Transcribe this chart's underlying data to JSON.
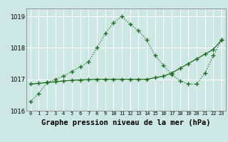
{
  "title": "Graphe pression niveau de la mer (hPa)",
  "x_labels": [
    "0",
    "1",
    "2",
    "3",
    "4",
    "5",
    "6",
    "7",
    "8",
    "9",
    "10",
    "11",
    "12",
    "13",
    "14",
    "15",
    "16",
    "17",
    "18",
    "19",
    "20",
    "21",
    "22",
    "23"
  ],
  "line1_x": [
    0,
    1,
    2,
    3,
    4,
    5,
    6,
    7,
    8,
    9,
    10,
    11,
    12,
    13,
    14,
    15,
    16,
    17,
    18,
    19,
    20,
    21,
    22,
    23
  ],
  "line1_y": [
    1016.3,
    1016.55,
    1016.9,
    1017.0,
    1017.1,
    1017.25,
    1017.4,
    1017.55,
    1018.0,
    1018.45,
    1018.8,
    1019.0,
    1018.75,
    1018.55,
    1018.25,
    1017.75,
    1017.45,
    1017.15,
    1016.95,
    1016.85,
    1016.85,
    1017.2,
    1017.75,
    1018.25
  ],
  "line2_x": [
    0,
    1,
    2,
    3,
    4,
    5,
    6,
    7,
    8,
    9,
    10,
    11,
    12,
    13,
    14,
    15,
    16,
    17,
    18,
    19,
    20,
    21,
    22,
    23
  ],
  "line2_y": [
    1016.85,
    1016.87,
    1016.9,
    1016.92,
    1016.95,
    1016.97,
    1016.98,
    1016.99,
    1017.0,
    1017.0,
    1017.0,
    1017.0,
    1017.0,
    1017.0,
    1017.0,
    1017.05,
    1017.1,
    1017.2,
    1017.35,
    1017.5,
    1017.65,
    1017.8,
    1017.95,
    1018.25
  ],
  "line_color": "#1a6b1a",
  "bg_color": "#cde8e4",
  "grid_color": "#b0d8d4",
  "ylim": [
    1016.0,
    1019.25
  ],
  "yticks": [
    1016,
    1017,
    1018,
    1019
  ],
  "title_fontsize": 7.5
}
